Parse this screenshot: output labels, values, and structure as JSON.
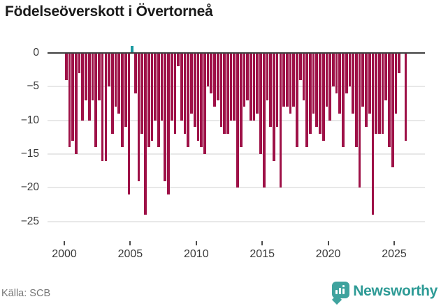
{
  "title": "Födelseöverskott i Övertorneå",
  "footer": {
    "source": "Källa: SCB"
  },
  "brand": {
    "name": "Newsworthy",
    "color": "#2e9b96",
    "icon": "bar-chart-speech-bubble-icon",
    "icon_color": "#3fa39e"
  },
  "colors": {
    "negative_bar": "#9e1147",
    "positive_bar": "#1a9aa0",
    "axis": "#3f3f3f",
    "grid": "#e8e8e8"
  },
  "chart_data": {
    "type": "bar",
    "title": "Födelseöverskott i Övertorneå",
    "xlabel": "",
    "ylabel": "",
    "ylim": [
      -25,
      1
    ],
    "grid": "horizontal",
    "legend": "none",
    "yticks": [
      0,
      -5,
      -10,
      -15,
      -20,
      -25
    ],
    "ytick_labels": [
      "0",
      "−5",
      "−10",
      "−15",
      "−20",
      "−25"
    ],
    "xticks": [
      2000,
      2005,
      2010,
      2015,
      2020,
      2025
    ],
    "xtick_labels": [
      "2000",
      "2005",
      "2010",
      "2015",
      "2020",
      "2025"
    ],
    "frequency": "quarterly",
    "start_year": 2000,
    "start_quarter": 1,
    "values": [
      -4,
      -14,
      -13,
      -15,
      -3,
      -10,
      -7,
      -10,
      -7,
      -14,
      -7,
      -16,
      -16,
      -5,
      -12,
      -8,
      -9,
      -14,
      -11,
      -21,
      1,
      -6,
      -19,
      -12,
      -24,
      -14,
      -13,
      -10,
      -14,
      -10,
      -19,
      -21,
      -10,
      -12,
      -2,
      -10,
      -12,
      -14,
      -9,
      -11,
      -13,
      -14,
      -15,
      -5,
      -6,
      -8,
      -7,
      -11,
      -12,
      -12,
      -10,
      -10,
      -20,
      -14,
      -8,
      -7,
      -10,
      -10,
      -9,
      -15,
      -20,
      -7,
      -11,
      -16,
      -11,
      -20,
      -8,
      -8,
      -9,
      -8,
      -14,
      -4,
      -7,
      -14,
      -12,
      -9,
      -11,
      -12,
      -13,
      -8,
      -10,
      -5,
      -6,
      -9,
      -14,
      -6,
      -5,
      -9,
      -14,
      -20,
      -8,
      -11,
      -9,
      -24,
      -12,
      -12,
      -12,
      -7,
      -14,
      -17,
      -9,
      -3,
      0,
      -13
    ]
  }
}
